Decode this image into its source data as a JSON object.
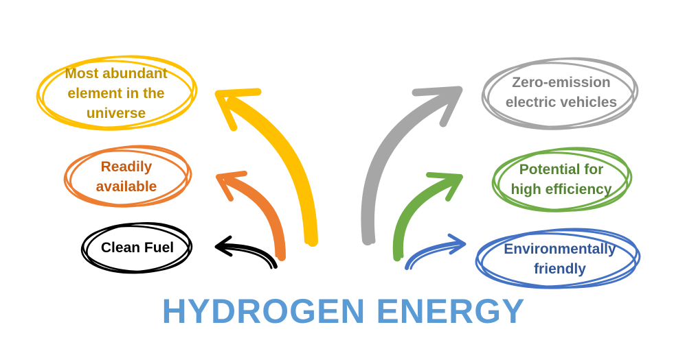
{
  "title": "HYDROGEN ENERGY",
  "colors": {
    "title": "#5b9bd5",
    "yellow": "#ffc000",
    "yellow_text": "#bf9000",
    "orange": "#ed7d31",
    "orange_text": "#c55a11",
    "black": "#000000",
    "gray": "#a6a6a6",
    "gray_text": "#7f7f7f",
    "green": "#70ad47",
    "green_text": "#548235",
    "blue": "#4472c4",
    "blue_text": "#2f5597"
  },
  "nodes": {
    "most_abundant": {
      "label": "Most abundant\nelement in the\nuniverse"
    },
    "readily_available": {
      "label": "Readily\navailable"
    },
    "clean_fuel": {
      "label": "Clean Fuel"
    },
    "zero_emission": {
      "label": "Zero-emission\nelectric vehicles"
    },
    "high_efficiency": {
      "label": "Potential for\nhigh efficiency"
    },
    "env_friendly": {
      "label": "Environmentally\nfriendly"
    }
  }
}
